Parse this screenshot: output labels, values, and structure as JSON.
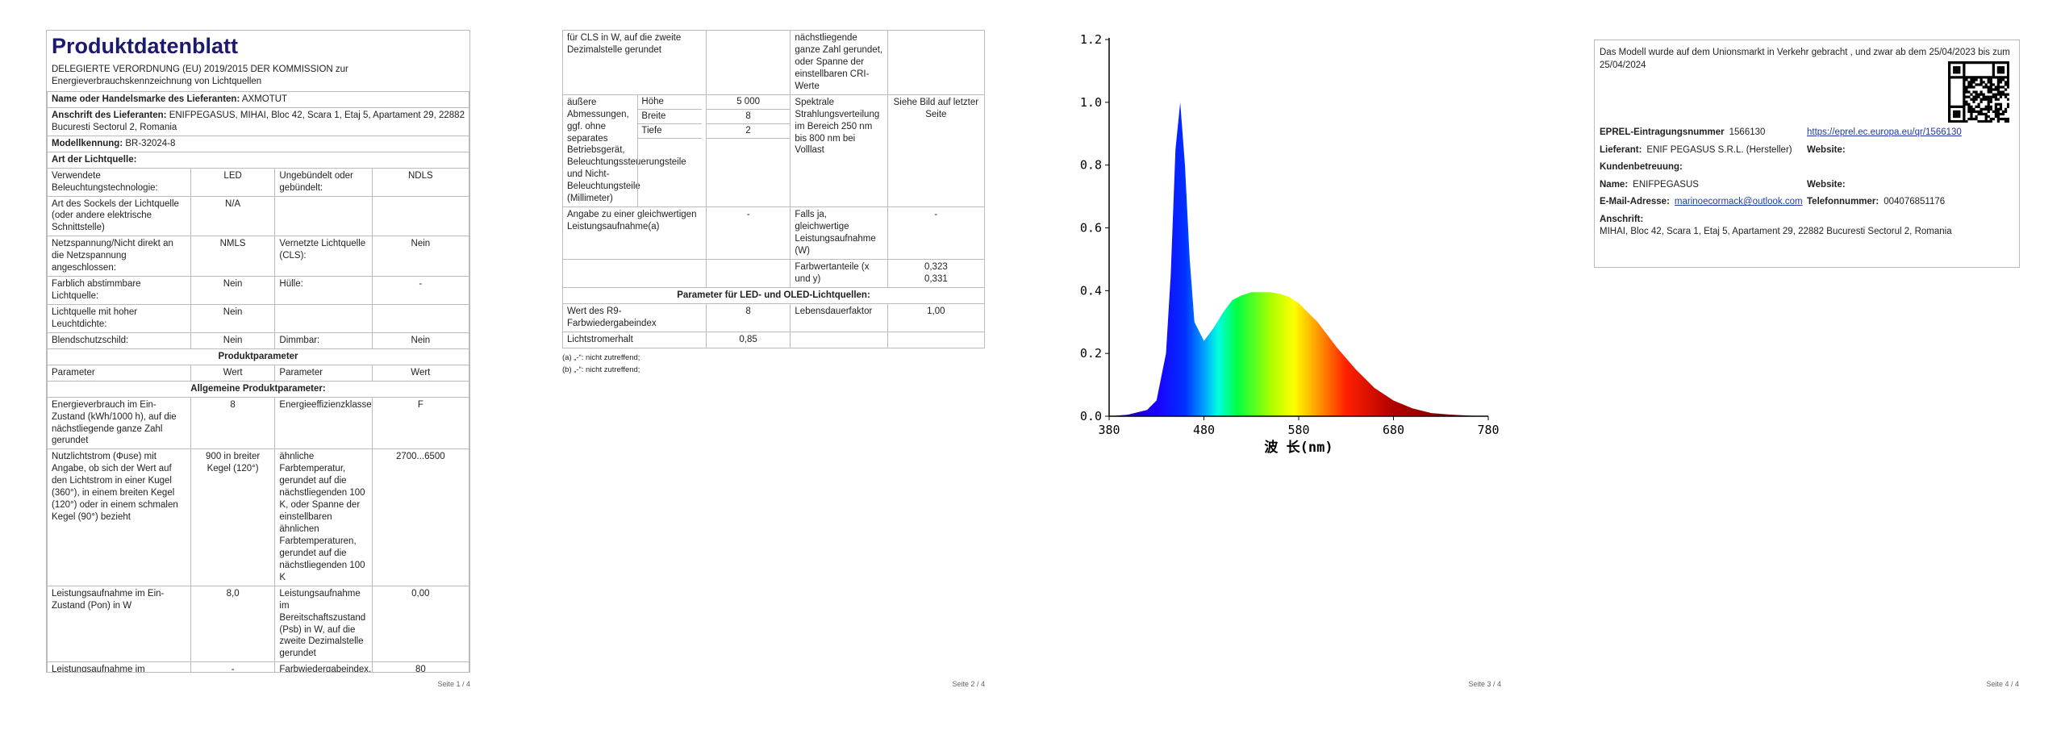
{
  "pages": [
    {
      "title": "Produktdatenblatt",
      "intro": "DELEGIERTE VERORDNUNG (EU) 2019/2015 DER KOMMISSION zur Energieverbrauchskennzeichnung von Lichtquellen",
      "rows": [
        [
          "Name oder Handelsmarke des Lieferanten:",
          "AXMOTUT"
        ],
        [
          "Anschrift des Lieferanten:",
          "ENIFPEGASUS, MIHAI, Bloc 42, Scara 1, Etaj 5, Apartament 29, 22882 Bucuresti Sectorul 2, Romania"
        ],
        [
          "Modellkennung:",
          "BR-32024-8"
        ],
        [
          "Art der Lichtquelle:"
        ],
        [
          "Verwendete Beleuchtungstechnologie:",
          "LED",
          "Ungebündelt oder gebündelt:",
          "NDLS"
        ],
        [
          "Art des Sockels der Lichtquelle (oder andere elektrische Schnittstelle)",
          "N/A",
          null,
          null
        ],
        [
          "Netzspannung/Nicht direkt an die Netzspannung angeschlossen:",
          "NMLS",
          "Vernetzte Lichtquelle (CLS):",
          "Nein"
        ],
        [
          "Farblich abstimmbare Lichtquelle:",
          "Nein",
          "Hülle:",
          "-"
        ],
        [
          "Lichtquelle mit hoher Leuchtdichte:",
          "Nein",
          null,
          null
        ],
        [
          "Blendschutzschild:",
          "Nein",
          "Dimmbar:",
          "Nein"
        ],
        [
          "Produktparameter"
        ],
        [
          "Parameter",
          "Wert",
          "Parameter",
          "Wert"
        ],
        [
          "Allgemeine Produktparameter:"
        ],
        [
          "Energieverbrauch im Ein-Zustand (kWh/1000 h), auf die nächstliegende ganze Zahl gerundet",
          "8",
          "Energieeffizienzklasse",
          "F"
        ],
        [
          "Nutzlichtstrom (Φuse) mit Angabe, ob sich der Wert auf den Lichtstrom in einer Kugel (360°), in einem breiten Kegel (120°) oder in einem schmalen Kegel (90°) bezieht",
          "900 in breiter Kegel (120°)",
          "ähnliche Farbtemperatur, gerundet auf die nächstliegenden 100 K, oder Spanne der einstellbaren ähnlichen Farbtemperaturen, gerundet auf die nächstliegenden 100 K",
          "2700...6500"
        ],
        [
          "Leistungsaufnahme im Ein-Zustand (Pon) in W",
          "8,0",
          "Leistungsaufnahme im Bereitschaftszustand (Psb) in W, auf die zweite Dezimalstelle gerundet",
          "0,00"
        ],
        [
          "Leistungsaufnahme im vernetzten Bereitschaftsbetrieb (Pnet)",
          "-",
          "Farbwiedergabeindex, auf die",
          "80"
        ]
      ],
      "footer": "Seite 1 / 4"
    },
    {
      "rows": [
        [
          "für CLS in W, auf die zweite Dezimalstelle gerundet",
          null,
          "nächstliegende ganze Zahl gerundet, oder Spanne der einstellbaren CRI-Werte",
          null
        ],
        [
          {
            "label": "äußere Abmessungen, ggf. ohne separates Betriebsgerät, Beleuchtungssteuerungsteile und Nicht-Beleuchtungsteile (Millimeter)",
            "sub": [
              {
                "name": "Höhe",
                "value": "5 000"
              },
              {
                "name": "Breite",
                "value": "8"
              },
              {
                "name": "Tiefe",
                "value": "2"
              }
            ]
          },
          "Spektrale Strahlungsverteilung im Bereich 250 nm bis 800 nm bei Volllast",
          "Siehe Bild auf letzter Seite"
        ],
        [
          "Angabe zu einer gleichwertigen Leistungsaufnahme(a)",
          "-",
          "Falls ja, gleichwertige Leistungsaufnahme (W)",
          "-"
        ],
        [
          null,
          null,
          "Farbwertanteile (x und y)",
          "0,323\n0,331"
        ],
        [
          "Parameter für LED- und OLED-Lichtquellen:"
        ],
        [
          "Wert des R9-Farbwiedergabeindex",
          "8",
          "Lebensdauerfaktor",
          "1,00"
        ],
        [
          "Lichtstromerhalt",
          "0,85",
          null,
          null
        ]
      ],
      "notes": [
        "(a) „-“: nicht zutreffend;",
        "(b) „-“: nicht zutreffend;"
      ],
      "footer": "Seite 2 / 4"
    },
    {
      "footer": "Seite 3 / 4"
    },
    {
      "intro": "Das Modell wurde auf dem Unionsmarkt in Verkehr gebracht , und zwar ab dem 25/04/2023 bis zum 25/04/2024",
      "rows": [
        [
          {
            "label": "EPREL-Eintragungsnummer",
            "value": "1566130"
          },
          {
            "link": "https://eprel.ec.europa.eu/qr/1566130"
          }
        ],
        [
          {
            "label": "Lieferant:",
            "value": "ENIF PEGASUS S.R.L. (Hersteller)"
          },
          {
            "label": "Website:"
          }
        ],
        [
          {
            "label": "Kundenbetreuung:"
          }
        ],
        [
          {
            "label": "Name:",
            "value": "ENIFPEGASUS"
          },
          {
            "label": "Website:"
          }
        ],
        [
          {
            "label": "E-Mail-Adresse:",
            "link": "marinoecormack@outlook.com"
          },
          {
            "label": "Telefonnummer:",
            "value": "004076851176"
          }
        ],
        [
          {
            "label": "Anschrift:",
            "value": "MIHAI, Bloc 42, Scara 1, Etaj 5, Apartament 29, 22882 Bucuresti Sectorul 2, Romania"
          }
        ]
      ],
      "footer": "Seite 4 / 4"
    }
  ],
  "chart_data": {
    "type": "area",
    "xlabel": "波 长(nm)",
    "x": [
      380,
      400,
      420,
      430,
      440,
      445,
      450,
      455,
      460,
      465,
      470,
      480,
      490,
      500,
      510,
      520,
      530,
      540,
      550,
      560,
      570,
      580,
      590,
      600,
      620,
      640,
      660,
      680,
      700,
      720,
      740,
      760,
      780
    ],
    "values": [
      0,
      0.005,
      0.02,
      0.05,
      0.2,
      0.45,
      0.85,
      1.0,
      0.8,
      0.5,
      0.3,
      0.24,
      0.28,
      0.33,
      0.37,
      0.385,
      0.395,
      0.395,
      0.395,
      0.39,
      0.38,
      0.36,
      0.33,
      0.3,
      0.22,
      0.15,
      0.09,
      0.05,
      0.025,
      0.01,
      0.005,
      0.002,
      0
    ],
    "xlim": [
      380,
      780
    ],
    "ylim": [
      0,
      1.2
    ],
    "xticks": [
      380,
      480,
      580,
      680,
      780
    ],
    "yticks": [
      {
        "value": 0,
        "label": "0.0"
      },
      0.2,
      0.4,
      0.6,
      0.8,
      {
        "value": 1,
        "label": "1.0"
      },
      1.2
    ]
  }
}
